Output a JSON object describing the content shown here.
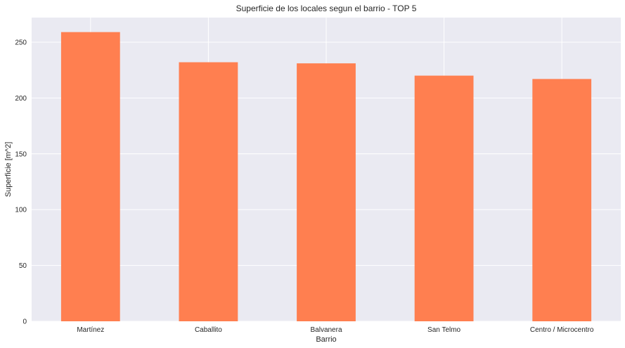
{
  "chart_data": {
    "type": "bar",
    "title": "Superficie de los locales segun el barrio - TOP 5",
    "xlabel": "Barrio",
    "ylabel": "Superficie [m^2]",
    "categories": [
      "Martínez",
      "Caballito",
      "Balvanera",
      "San Telmo",
      "Centro / Microcentro"
    ],
    "values": [
      259,
      232,
      231,
      220,
      217
    ],
    "ylim": [
      0,
      272
    ],
    "yticks": [
      0,
      50,
      100,
      150,
      200,
      250
    ],
    "grid": true,
    "bar_color": "#ff7f50",
    "background_color": "#eaeaf2",
    "grid_color": "#ffffff"
  }
}
